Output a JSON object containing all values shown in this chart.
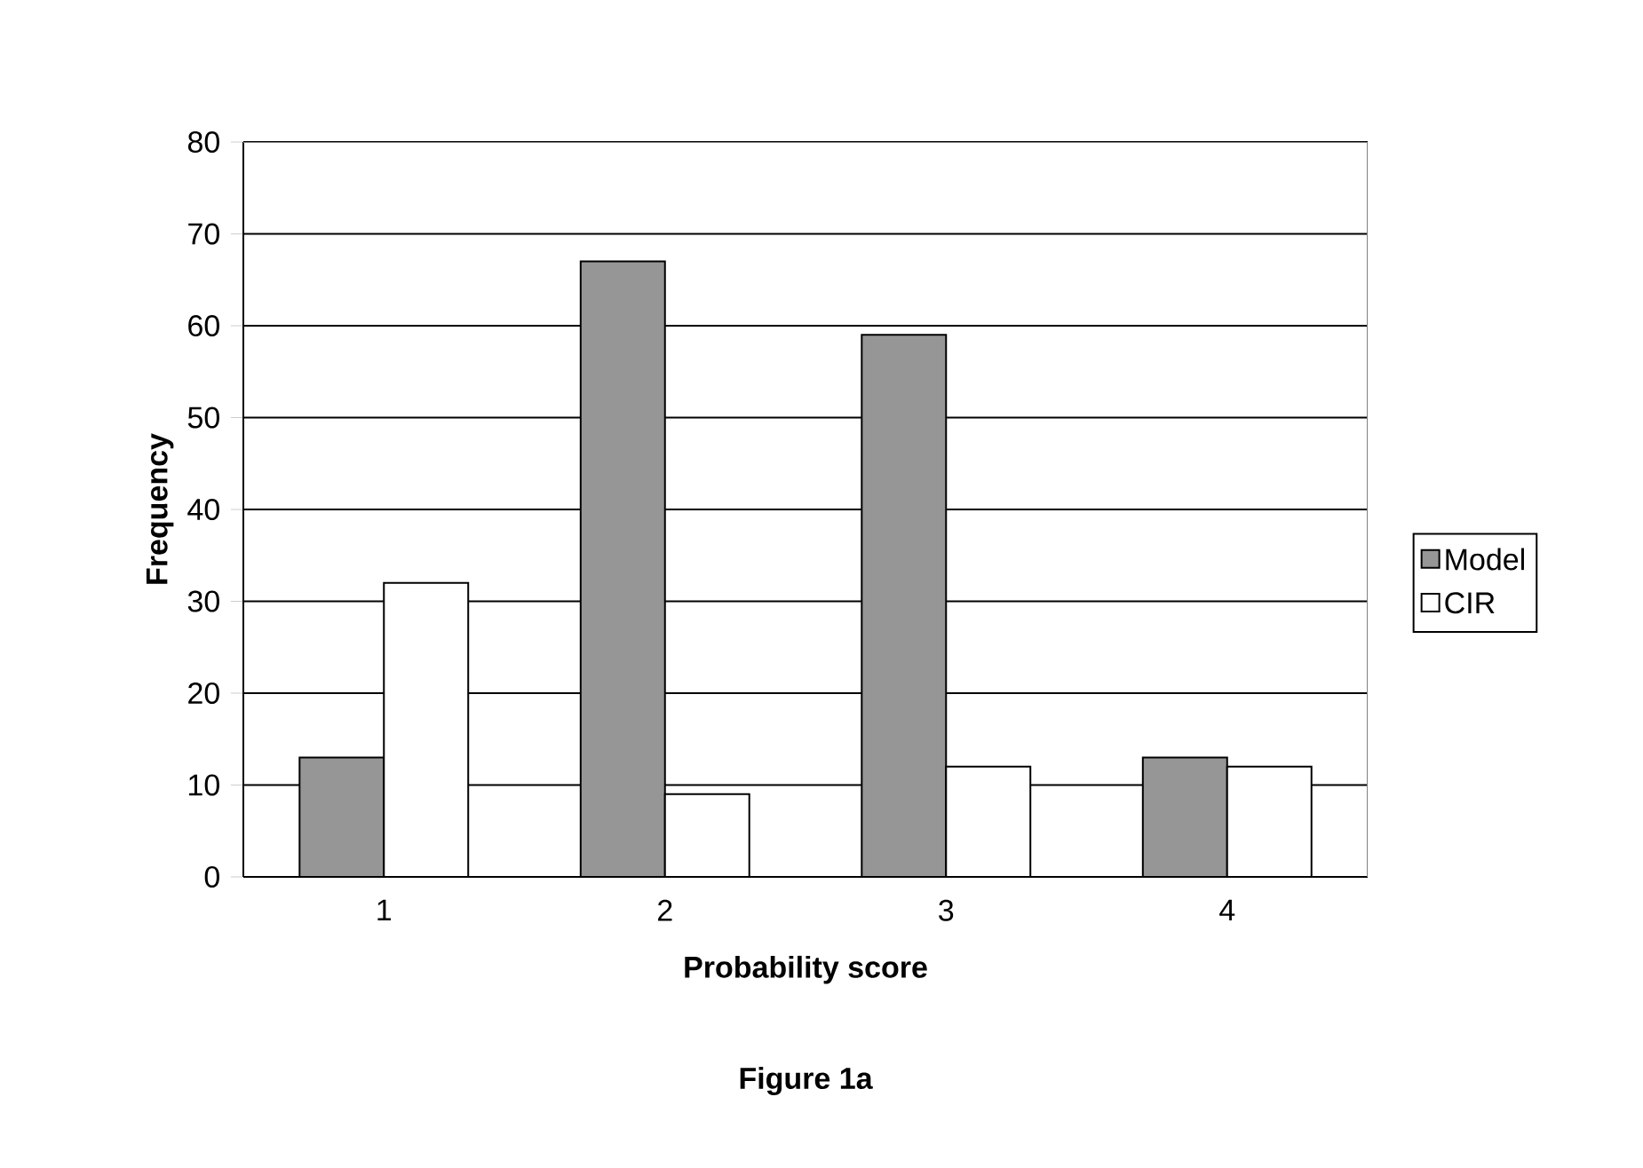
{
  "chart_data": {
    "type": "bar",
    "xlabel": "Probability score",
    "ylabel": "Frequency",
    "categories": [
      "1",
      "2",
      "3",
      "4"
    ],
    "series": [
      {
        "name": "Model",
        "color": "#969696",
        "values": [
          13,
          67,
          59,
          13
        ]
      },
      {
        "name": "CIR",
        "color": "#ffffff",
        "values": [
          32,
          9,
          12,
          12
        ]
      }
    ],
    "ylim": [
      0,
      80
    ],
    "yticks": [
      0,
      10,
      20,
      30,
      40,
      50,
      60,
      70,
      80
    ],
    "grid": "y",
    "legend": "right",
    "annotations": [
      "Figure 1a"
    ]
  }
}
